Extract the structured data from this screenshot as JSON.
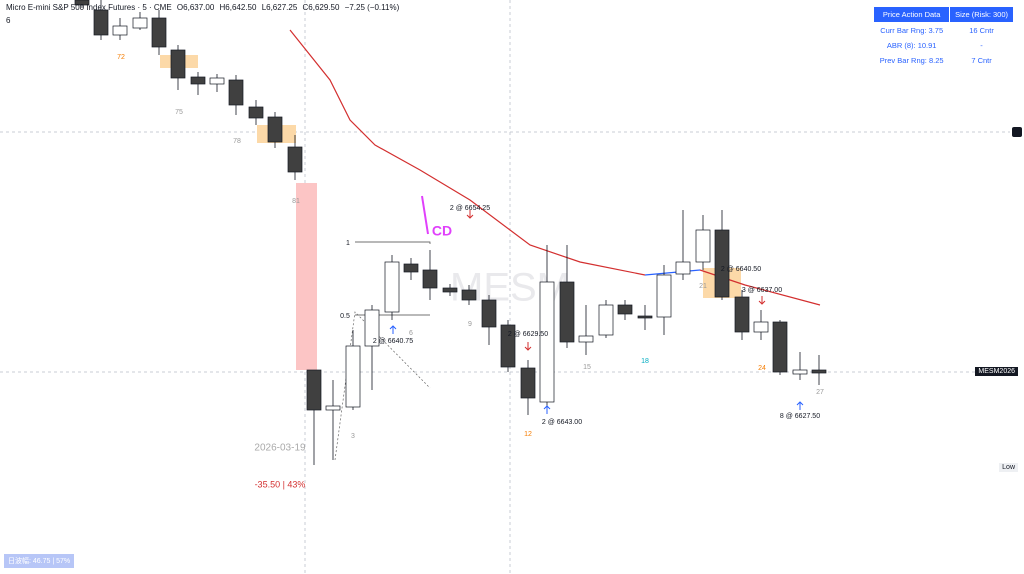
{
  "header": {
    "symbol": "Micro E-mini S&P 500 Index Futures · 5 · CME",
    "open": "O6,637.00",
    "high": "H6,642.50",
    "low": "L6,627.25",
    "close": "C6,629.50",
    "change": "−7.25 (−0.11%)",
    "counter": "6"
  },
  "panel": {
    "headers": [
      "Price Action Data",
      "Size (Risk: 300)"
    ],
    "rows": [
      [
        "Curr Bar Rng: 3.75",
        "16 Cntr"
      ],
      [
        "ABR (8): 10.91",
        "-"
      ],
      [
        "Prev Bar Rng: 8.25",
        "7 Cntr"
      ]
    ]
  },
  "annotations": [
    "72",
    "75",
    "78",
    "81",
    "1",
    "0.5",
    "CD",
    "2 @ 6654.25",
    "2 @ 6640.75",
    "6",
    "9",
    "2 @ 6629.50",
    "3",
    "2 @ 6643.00",
    "12",
    "15",
    "18",
    "21",
    "2 @ 6640.50",
    "3 @ 6637.00",
    "24",
    "27",
    "8 @ 6627.50",
    "2026-03-19",
    "-35.50 | 43%"
  ],
  "watermark": "MESM",
  "price_tag": "MESM2026",
  "low_tag": "Low",
  "footer": "日波幅: 46.75 | 57%"
}
